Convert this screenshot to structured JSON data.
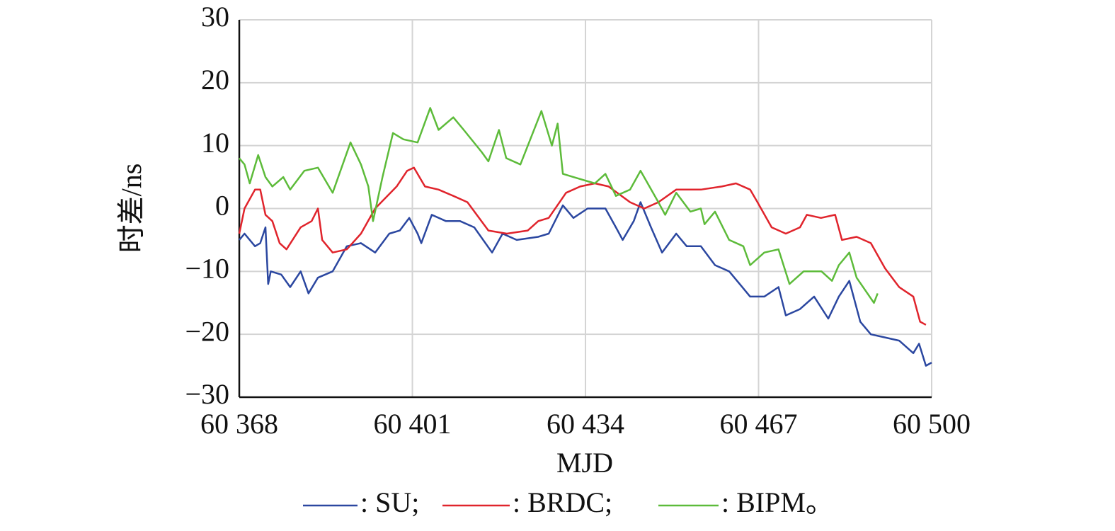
{
  "chart_data": {
    "type": "line",
    "xlabel": "MJD",
    "ylabel": "时差/ns",
    "xlim": [
      60368,
      60500
    ],
    "xticks": [
      {
        "value": 60368,
        "label": "60 368"
      },
      {
        "value": 60401,
        "label": "60 401"
      },
      {
        "value": 60434,
        "label": "60 434"
      },
      {
        "value": 60467,
        "label": "60 467"
      },
      {
        "value": 60500,
        "label": "60 500"
      }
    ],
    "ylim": [
      -30,
      30
    ],
    "yticks": [
      {
        "value": -30,
        "label": "−30"
      },
      {
        "value": -20,
        "label": "−20"
      },
      {
        "value": -10,
        "label": "−10"
      },
      0,
      10,
      20,
      30
    ],
    "grid": true,
    "series": [
      {
        "name": ": SU;",
        "color": "#2b47a0",
        "x": [
          60368,
          60369,
          60370,
          60371,
          60372,
          60373,
          60373.5,
          60374,
          60376,
          60377.7,
          60379.7,
          60381.2,
          60383,
          60385.8,
          60388.5,
          60391.2,
          60393.9,
          60396.6,
          60398.6,
          60400.4,
          60402,
          60402.7,
          60404.7,
          60407.4,
          60410.1,
          60412.8,
          60416.2,
          60418.2,
          60420.9,
          60425,
          60427,
          60429.7,
          60431.7,
          60434.4,
          60437.8,
          60439.8,
          60441.1,
          60443.2,
          60444.5,
          60446.5,
          60448.6,
          60451.3,
          60453.3,
          60456,
          60458.7,
          60461.4,
          60463.4,
          60465.4,
          60468.1,
          60470.8,
          60472.2,
          60474.9,
          60477.6,
          60480.3,
          60482.3,
          60484.3,
          60486.4,
          60488.4,
          60491.1,
          60493.8,
          60496.5,
          60497.6,
          60498.9,
          60500
        ],
        "values": [
          -5,
          -4,
          -5,
          -6,
          -5.5,
          -3,
          -12,
          -10,
          -10.5,
          -12.5,
          -10,
          -13.5,
          -11,
          -10,
          -6,
          -5.5,
          -7,
          -4,
          -3.5,
          -1.5,
          -4,
          -5.5,
          -1,
          -2,
          -2,
          -3,
          -7,
          -4,
          -5,
          -4.5,
          -4,
          0.5,
          -1.5,
          0,
          0,
          -3,
          -5,
          -2,
          1,
          -3,
          -7,
          -4,
          -6,
          -6,
          -9,
          -10,
          -12,
          -14,
          -14,
          -12.5,
          -17,
          -16,
          -14,
          -17.5,
          -14,
          -11.5,
          -18,
          -20,
          -20.5,
          -21,
          -23,
          -21.5,
          -25,
          -24.5
        ]
      },
      {
        "name": ": BRDC;",
        "color": "#e0242c",
        "x": [
          60368,
          60369,
          60371,
          60372,
          60373,
          60374.3,
          60375.7,
          60377,
          60379.7,
          60381.8,
          60383,
          60383.8,
          60385.8,
          60388.5,
          60391.2,
          60393.9,
          60398,
          60400,
          60401.3,
          60403.4,
          60406,
          60408.8,
          60411.5,
          60415.5,
          60419,
          60423,
          60425,
          60427,
          60430.3,
          60433,
          60435.8,
          60438.4,
          60442.5,
          60445.2,
          60447.9,
          60451.3,
          60456,
          60460,
          60462.7,
          60465.4,
          60466.8,
          60469.5,
          60472.2,
          60474.9,
          60476.2,
          60478.9,
          60481.6,
          60482.9,
          60485.7,
          60488.4,
          60491.1,
          60493.8,
          60496.5,
          60497.8,
          60498.9
        ],
        "values": [
          -4,
          0,
          3,
          3,
          -1,
          -2,
          -5.5,
          -6.5,
          -3,
          -2,
          0,
          -5,
          -7,
          -6.5,
          -4,
          0,
          3.5,
          6,
          6.5,
          3.5,
          3,
          2,
          1,
          -3.5,
          -4,
          -3.5,
          -2,
          -1.5,
          2.5,
          3.5,
          4,
          3.5,
          1,
          0,
          1,
          3,
          3,
          3.5,
          4,
          3,
          1,
          -3,
          -4,
          -3,
          -1,
          -1.5,
          -1,
          -5,
          -4.5,
          -5.5,
          -9.5,
          -12.5,
          -14,
          -18,
          -18.5
        ]
      },
      {
        "name": ": BIPM。",
        "color": "#5dbb3a",
        "x": [
          60368,
          60369,
          60370,
          60371.6,
          60373,
          60374.3,
          60376.4,
          60377.7,
          60380.4,
          60383,
          60385.8,
          60389.2,
          60391.2,
          60392.6,
          60393.5,
          60395.3,
          60397.3,
          60399.3,
          60402,
          60404.4,
          60406,
          60408.8,
          60410.8,
          60414.2,
          60415.5,
          60417.5,
          60418.9,
          60421.6,
          60425.6,
          60427.6,
          60428.7,
          60429.7,
          60431.7,
          60435.8,
          60437.8,
          60439.8,
          60442.5,
          60444.5,
          60447.9,
          60449.2,
          60451.3,
          60454,
          60456,
          60456.7,
          60458.7,
          60461.4,
          60464.1,
          60465.4,
          60468.1,
          60470.8,
          60472.9,
          60475.6,
          60479,
          60481,
          60482.3,
          60484.3,
          60485.7,
          60489,
          60489.7
        ],
        "values": [
          8,
          7,
          4,
          8.5,
          5,
          3.5,
          5,
          3,
          6,
          6.5,
          2.5,
          10.5,
          7,
          3.5,
          -2,
          5,
          12,
          11,
          10.5,
          16,
          12.5,
          14.5,
          12.5,
          9,
          7.5,
          12.5,
          8,
          7,
          15.5,
          10,
          13.5,
          5.5,
          5,
          4,
          5.5,
          2,
          3,
          6,
          1,
          -1,
          2.5,
          -0.5,
          0,
          -2.5,
          -0.5,
          -5,
          -6,
          -9,
          -7,
          -6.5,
          -12,
          -10,
          -10,
          -11.5,
          -9,
          -7,
          -11,
          -15,
          -13.5
        ]
      }
    ]
  }
}
